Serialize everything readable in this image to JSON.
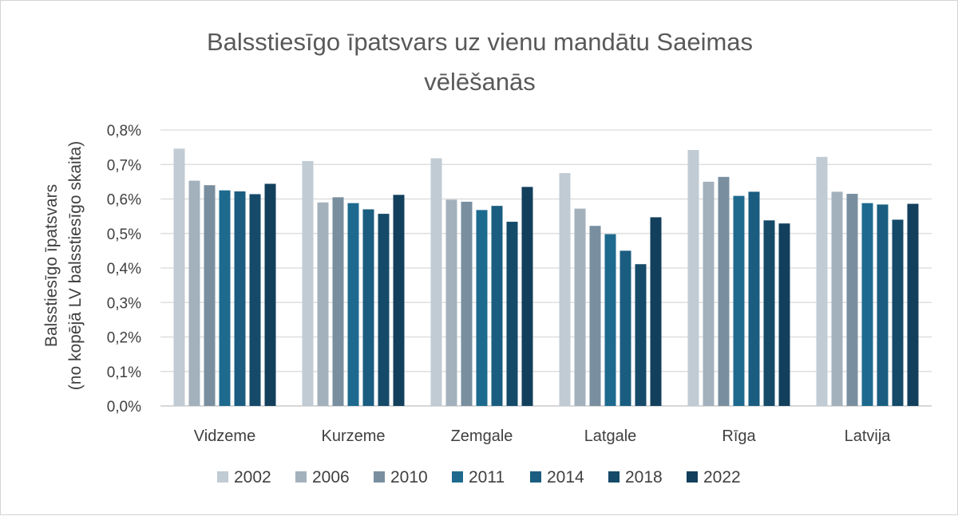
{
  "chart_data": {
    "type": "bar",
    "title": "Balsstiesīgo īpatsvars uz vienu mandātu Saeimas vēlēšanās",
    "title_lines": [
      "Balsstiesīgo īpatsvars uz vienu mandātu Saeimas",
      "vēlēšanās"
    ],
    "ylabel_lines": [
      "Balsstiesīgo īpatsvars",
      "(no kopējā LV balsstiesīgo skaita)"
    ],
    "xlabel": "",
    "categories": [
      "Vidzeme",
      "Kurzeme",
      "Zemgale",
      "Latgale",
      "Rīga",
      "Latvija"
    ],
    "ylim": [
      0,
      0.8
    ],
    "y_ticks": [
      0,
      0.1,
      0.2,
      0.3,
      0.4,
      0.5,
      0.6,
      0.7,
      0.8
    ],
    "y_tick_labels": [
      "0,0%",
      "0,1%",
      "0,2%",
      "0,3%",
      "0,4%",
      "0,5%",
      "0,6%",
      "0,7%",
      "0,8%"
    ],
    "grid": true,
    "legend_position": "bottom",
    "series": [
      {
        "name": "2002",
        "color": "#c0cbd4",
        "values": [
          0.746,
          0.71,
          0.718,
          0.675,
          0.742,
          0.722
        ]
      },
      {
        "name": "2006",
        "color": "#a3b1bd",
        "values": [
          0.653,
          0.59,
          0.598,
          0.572,
          0.65,
          0.621
        ]
      },
      {
        "name": "2010",
        "color": "#798f9f",
        "values": [
          0.64,
          0.605,
          0.592,
          0.522,
          0.664,
          0.615
        ]
      },
      {
        "name": "2011",
        "color": "#1e6a8f",
        "values": [
          0.625,
          0.588,
          0.568,
          0.498,
          0.609,
          0.588
        ]
      },
      {
        "name": "2014",
        "color": "#1a5d80",
        "values": [
          0.622,
          0.57,
          0.58,
          0.45,
          0.621,
          0.584
        ]
      },
      {
        "name": "2018",
        "color": "#154a69",
        "values": [
          0.614,
          0.557,
          0.534,
          0.411,
          0.538,
          0.54
        ]
      },
      {
        "name": "2022",
        "color": "#123f5c",
        "values": [
          0.644,
          0.612,
          0.635,
          0.547,
          0.529,
          0.586
        ]
      }
    ]
  }
}
